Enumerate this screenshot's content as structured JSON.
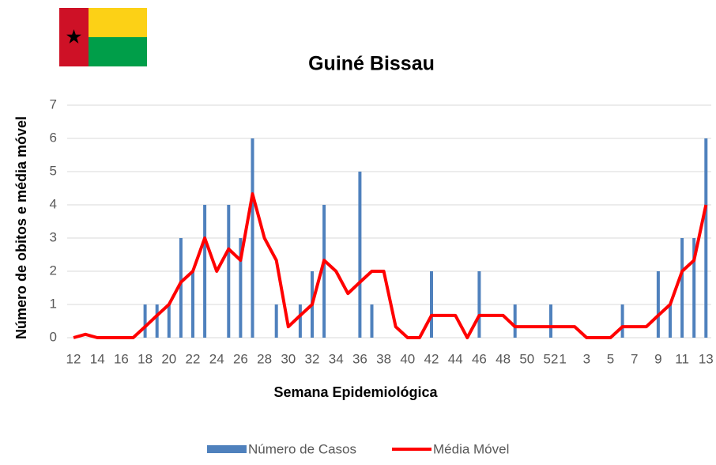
{
  "chart_data": {
    "type": "bar_line",
    "title": "Guiné Bissau",
    "xlabel": "Semana Epidemiológica",
    "ylabel": "Número de obitos e média móvel",
    "categories": [
      12,
      null,
      14,
      null,
      16,
      null,
      18,
      null,
      20,
      null,
      22,
      null,
      24,
      null,
      26,
      null,
      28,
      null,
      30,
      null,
      32,
      null,
      34,
      null,
      36,
      null,
      38,
      null,
      40,
      null,
      42,
      null,
      44,
      null,
      46,
      null,
      48,
      null,
      50,
      null,
      52,
      1,
      null,
      3,
      null,
      5,
      null,
      7,
      null,
      9,
      null,
      11,
      null,
      13
    ],
    "series": [
      {
        "name": "Número de Casos",
        "type": "bar",
        "color": "#4f81bd",
        "values": [
          0,
          0,
          0,
          0,
          0,
          0,
          1,
          1,
          1,
          3,
          2,
          4,
          0,
          4,
          3,
          6,
          0,
          1,
          0,
          1,
          2,
          4,
          0,
          0,
          5,
          1,
          0,
          0,
          0,
          0,
          2,
          0,
          0,
          0,
          2,
          0,
          0,
          1,
          0,
          0,
          1,
          0,
          0,
          0,
          0,
          0,
          1,
          0,
          0,
          2,
          1,
          3,
          3,
          6
        ]
      },
      {
        "name": "Média Móvel",
        "type": "line",
        "color": "#ff0000",
        "values": [
          0,
          0.1,
          0,
          0,
          0,
          0,
          0.33,
          0.67,
          1,
          1.67,
          2,
          3,
          2,
          2.67,
          2.33,
          4.33,
          3,
          2.33,
          0.33,
          0.67,
          1,
          2.33,
          2,
          1.33,
          1.67,
          2,
          2,
          0.33,
          0,
          0,
          0.67,
          0.67,
          0.67,
          0,
          0.67,
          0.67,
          0.67,
          0.33,
          0.33,
          0.33,
          0.33,
          0.33,
          0.33,
          0,
          0,
          0,
          0.33,
          0.33,
          0.33,
          0.67,
          1,
          2,
          2.33,
          4
        ]
      }
    ],
    "ylim": [
      0,
      7
    ],
    "yticks": [
      0,
      1,
      2,
      3,
      4,
      5,
      6,
      7
    ],
    "grid": true,
    "legend": "bottom"
  }
}
